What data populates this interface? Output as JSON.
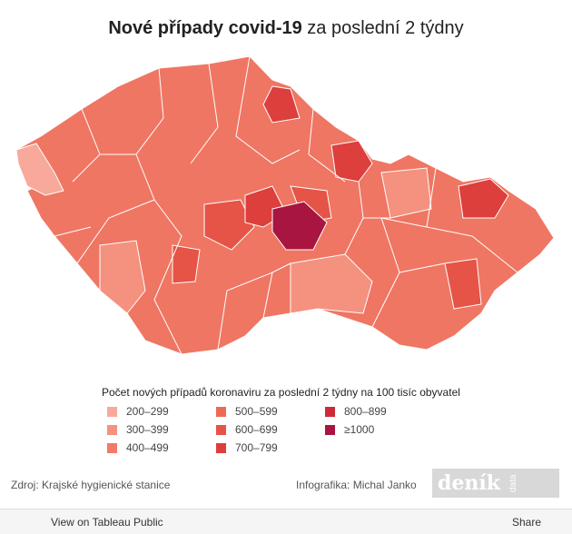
{
  "header": {
    "title_bold": "Nové případy covid-19",
    "title_rest": " za poslední 2 týdny"
  },
  "legend": {
    "title": "Počet nových případů koronaviru za poslední 2 týdny na 100 tisíc obyvatel",
    "items": [
      {
        "label": "200–299",
        "color": "#f8a99a"
      },
      {
        "label": "300–399",
        "color": "#f4917f"
      },
      {
        "label": "400–499",
        "color": "#f07b67"
      },
      {
        "label": "500–599",
        "color": "#ec6a55"
      },
      {
        "label": "600–699",
        "color": "#e55446"
      },
      {
        "label": "700–799",
        "color": "#dc3f3c"
      },
      {
        "label": "800–899",
        "color": "#cf2a3a"
      },
      {
        "label": "≥1000",
        "color": "#a81540"
      }
    ]
  },
  "footer": {
    "source": "Zdroj: Krajské hygienické stanice",
    "credit": "Infografika: Michal Janko",
    "logo": "deník",
    "logo_sub": "data"
  },
  "toolbar": {
    "view": "View on Tableau Public",
    "share": "Share"
  }
}
